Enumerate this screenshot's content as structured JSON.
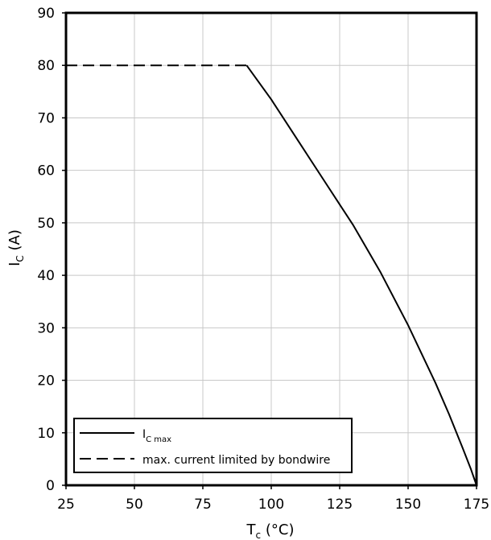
{
  "chart_data": {
    "type": "line",
    "xlabel": {
      "main": "T",
      "sub": "c",
      "rest": " (°C)"
    },
    "ylabel": {
      "main": "I",
      "sub": "C",
      "rest": " (A)"
    },
    "xlim": [
      25,
      175
    ],
    "ylim": [
      0,
      90
    ],
    "x_ticks": [
      "25",
      "50",
      "75",
      "100",
      "125",
      "150",
      "175"
    ],
    "y_ticks": [
      "0",
      "10",
      "20",
      "30",
      "40",
      "50",
      "60",
      "70",
      "80",
      "90"
    ],
    "grid": true,
    "legend_position": "bottom-left",
    "series": [
      {
        "legend_main": "I",
        "legend_sub": "C max",
        "style": "solid",
        "x": [
          91,
          100,
          110,
          120,
          125,
          130,
          140,
          150,
          160,
          165,
          170,
          173,
          175
        ],
        "y": [
          80,
          73.5,
          65.5,
          57.5,
          53.5,
          49.5,
          40.5,
          30.5,
          19.5,
          13.5,
          7,
          3,
          0
        ]
      },
      {
        "legend_text": "max. current limited by bondwire",
        "style": "dashed",
        "x": [
          25,
          91
        ],
        "y": [
          80,
          80
        ]
      }
    ]
  }
}
